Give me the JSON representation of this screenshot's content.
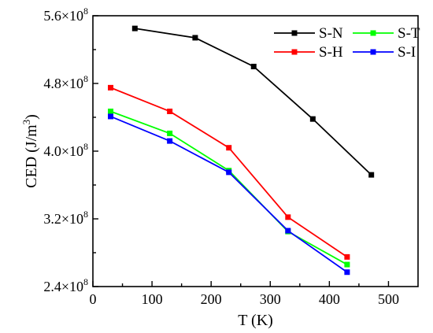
{
  "chart_data": {
    "type": "line",
    "xlabel": "T (K)",
    "ylabel_text": "CED (J/m",
    "ylabel_sup": "3",
    "ylabel_close": ")",
    "xlim": [
      0,
      550
    ],
    "ylim": [
      240000000.0,
      560000000.0
    ],
    "x_ticks": [
      0,
      100,
      200,
      300,
      400,
      500
    ],
    "x_tick_labels": [
      "0",
      "100",
      "200",
      "300",
      "400",
      "500"
    ],
    "y_ticks": [
      240000000.0,
      320000000.0,
      400000000.0,
      480000000.0,
      560000000.0
    ],
    "y_tick_labels": [
      {
        "mantissa": "2.4×10",
        "exp": "8"
      },
      {
        "mantissa": "3.2×10",
        "exp": "8"
      },
      {
        "mantissa": "4.0×10",
        "exp": "8"
      },
      {
        "mantissa": "4.8×10",
        "exp": "8"
      },
      {
        "mantissa": "5.6×10",
        "exp": "8"
      }
    ],
    "grid": false,
    "legend_position": "top-right",
    "series": [
      {
        "name": "S-N",
        "color": "#000000",
        "x": [
          71,
          173,
          272,
          372,
          471
        ],
        "y": [
          545000000.0,
          534000000.0,
          500000000.0,
          438000000.0,
          372000000.0
        ]
      },
      {
        "name": "S-H",
        "color": "#ff0000",
        "x": [
          30,
          130,
          230,
          330,
          430
        ],
        "y": [
          475000000.0,
          447000000.0,
          404000000.0,
          322000000.0,
          275000000.0
        ]
      },
      {
        "name": "S-T",
        "color": "#00ff00",
        "x": [
          30,
          130,
          230,
          330,
          430
        ],
        "y": [
          447000000.0,
          421000000.0,
          377000000.0,
          305000000.0,
          266000000.0
        ]
      },
      {
        "name": "S-I",
        "color": "#0000ff",
        "x": [
          30,
          130,
          230,
          330,
          430
        ],
        "y": [
          441000000.0,
          412000000.0,
          375000000.0,
          306000000.0,
          257000000.0
        ]
      }
    ]
  }
}
